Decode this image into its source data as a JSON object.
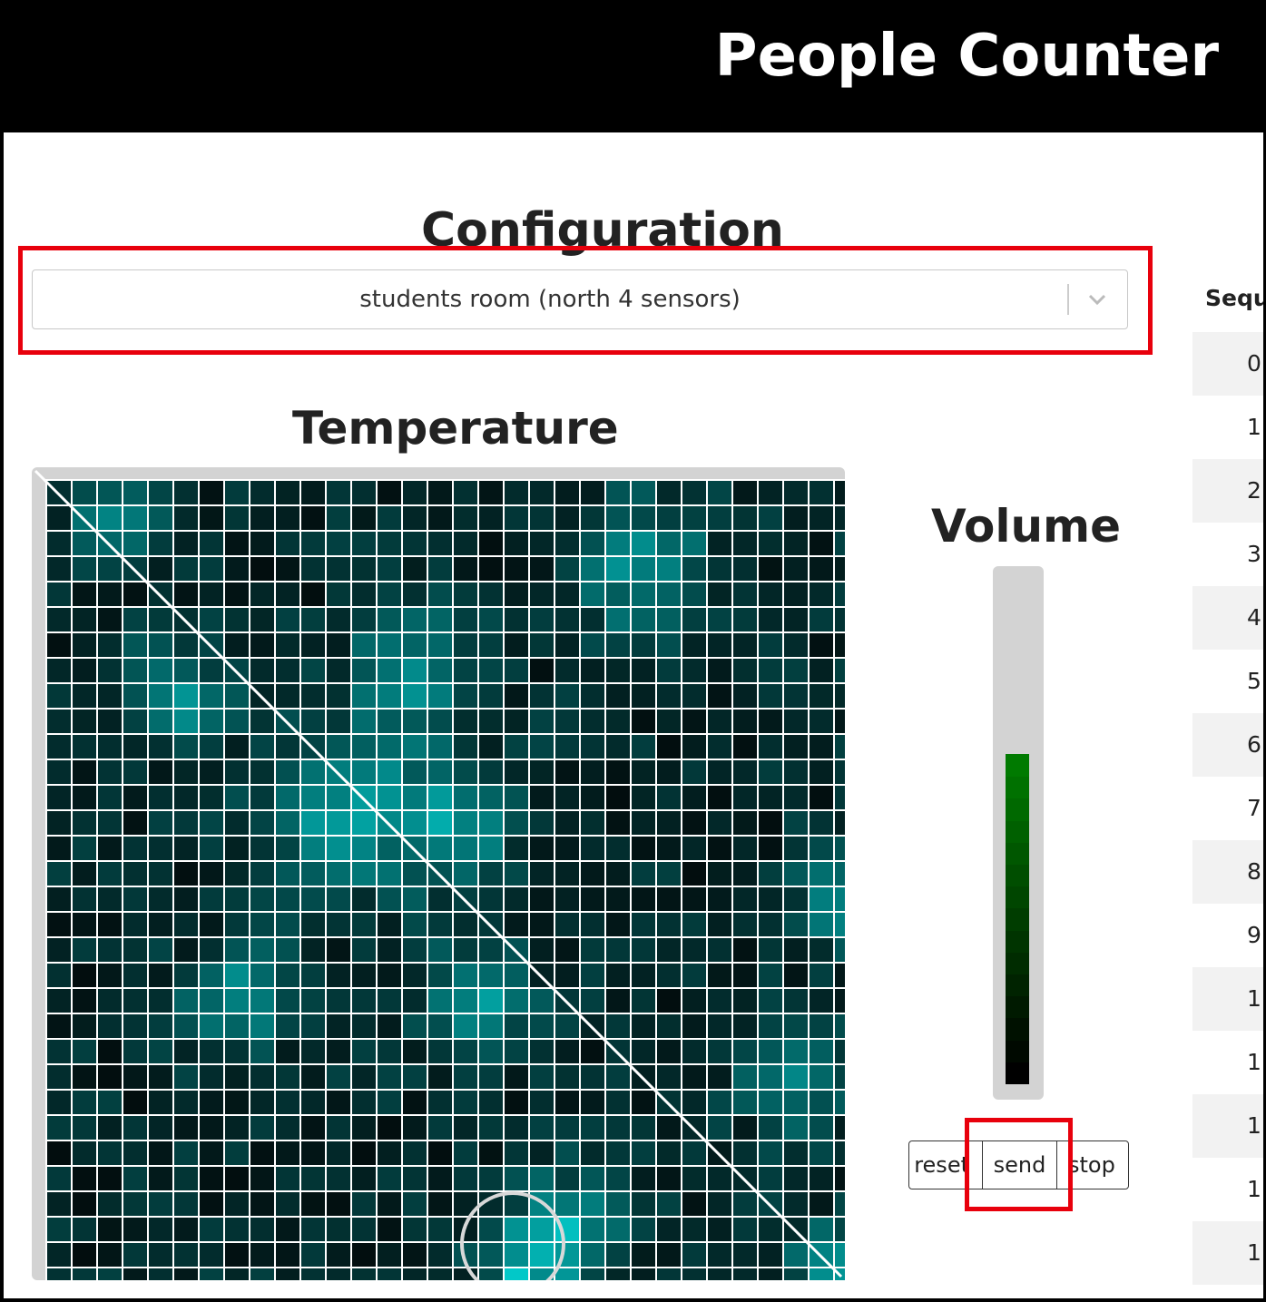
{
  "header": {
    "title": "People Counter"
  },
  "configuration": {
    "title": "Configuration",
    "selected_value": "students room (north 4 sensors)",
    "dropdown_icon": "chevron-down-icon"
  },
  "temperature": {
    "title": "Temperature",
    "grid_size": 32
  },
  "volume": {
    "title": "Volume",
    "level_cells": 15,
    "total_cells": 23
  },
  "buttons": {
    "reset": "reset",
    "send": "send",
    "stop": "stop"
  },
  "table": {
    "header": "Sequ",
    "rows": [
      "0",
      "1",
      "2",
      "3",
      "4",
      "5",
      "6",
      "7",
      "8",
      "9",
      "1",
      "1",
      "1",
      "1",
      "1"
    ]
  },
  "colors": {
    "highlight": "#e8000c",
    "heat_cold": "#020d0e",
    "heat_hot": "#00c8c8",
    "volume_on": "#007a00"
  }
}
